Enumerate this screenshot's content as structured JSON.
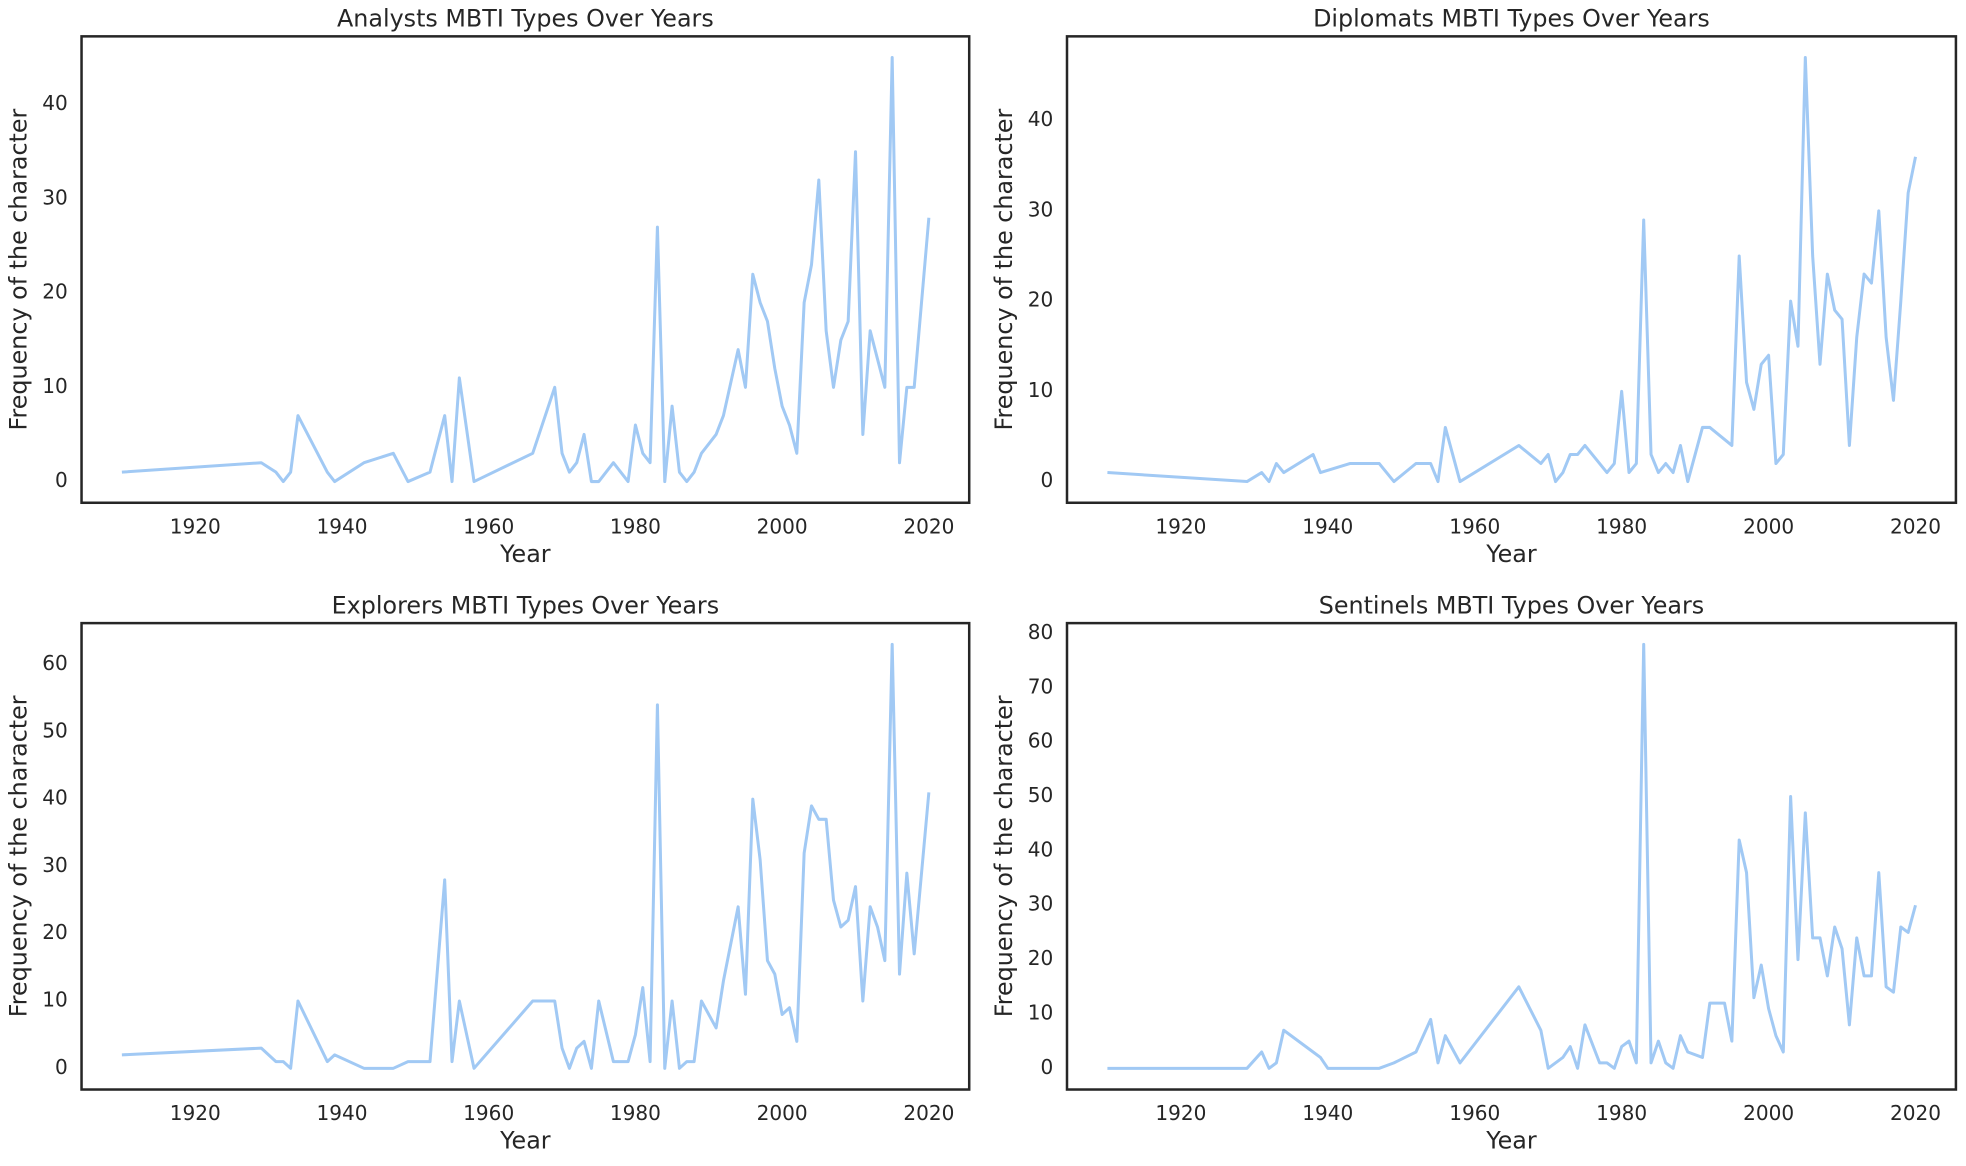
{
  "chart_data": [
    {
      "type": "line",
      "title": "Analysts MBTI Types Over Years",
      "x_label": "Year",
      "y_label": "Frequency of the character",
      "color": "#a1c9f4",
      "x": [
        1910,
        1929,
        1931,
        1932,
        1933,
        1934,
        1938,
        1939,
        1943,
        1947,
        1949,
        1952,
        1954,
        1955,
        1956,
        1958,
        1966,
        1969,
        1970,
        1971,
        1972,
        1973,
        1974,
        1975,
        1977,
        1979,
        1980,
        1981,
        1982,
        1983,
        1984,
        1985,
        1986,
        1987,
        1988,
        1989,
        1991,
        1992,
        1994,
        1995,
        1996,
        1997,
        1998,
        1999,
        2000,
        2001,
        2002,
        2003,
        2004,
        2005,
        2006,
        2007,
        2008,
        2009,
        2010,
        2011,
        2012,
        2014,
        2015,
        2016,
        2017,
        2018,
        2019,
        2020
      ],
      "values": [
        1,
        2,
        1,
        0,
        1,
        7,
        1,
        0,
        2,
        3,
        0,
        1,
        7,
        0,
        11,
        0,
        3,
        10,
        3,
        1,
        2,
        5,
        0,
        0,
        2,
        0,
        6,
        3,
        2,
        27,
        0,
        8,
        1,
        0,
        1,
        3,
        5,
        7,
        14,
        10,
        22,
        19,
        17,
        12,
        8,
        6,
        3,
        19,
        23,
        32,
        16,
        10,
        15,
        17,
        35,
        5,
        16,
        10,
        45,
        2,
        10,
        10,
        19,
        28
      ],
      "xlim": [
        1904.5,
        2025.5
      ],
      "xticks": [
        1920,
        1940,
        1960,
        1980,
        2000,
        2020
      ],
      "ylim": [
        -2.25,
        47.25
      ],
      "yticks": [
        0,
        10,
        20,
        30,
        40
      ]
    },
    {
      "type": "line",
      "title": "Diplomats MBTI Types Over Years",
      "x_label": "Year",
      "y_label": "Frequency of the character",
      "color": "#a1c9f4",
      "x": [
        1910,
        1929,
        1931,
        1932,
        1933,
        1934,
        1938,
        1939,
        1943,
        1947,
        1949,
        1952,
        1954,
        1955,
        1956,
        1958,
        1966,
        1969,
        1970,
        1971,
        1972,
        1973,
        1974,
        1975,
        1978,
        1979,
        1980,
        1981,
        1982,
        1983,
        1984,
        1985,
        1986,
        1987,
        1988,
        1989,
        1991,
        1992,
        1995,
        1996,
        1997,
        1998,
        1999,
        2000,
        2001,
        2002,
        2003,
        2004,
        2005,
        2006,
        2007,
        2008,
        2009,
        2010,
        2011,
        2012,
        2013,
        2014,
        2015,
        2016,
        2017,
        2018,
        2019,
        2020
      ],
      "values": [
        1,
        0,
        1,
        0,
        2,
        1,
        3,
        1,
        2,
        2,
        0,
        2,
        2,
        0,
        6,
        0,
        4,
        2,
        3,
        0,
        1,
        3,
        3,
        4,
        1,
        2,
        10,
        1,
        2,
        29,
        3,
        1,
        2,
        1,
        4,
        0,
        6,
        6,
        4,
        25,
        11,
        8,
        13,
        14,
        2,
        3,
        20,
        15,
        47,
        25,
        13,
        23,
        19,
        18,
        4,
        16,
        23,
        22,
        30,
        16,
        9,
        20,
        32,
        36
      ],
      "xlim": [
        1904.5,
        2025.5
      ],
      "xticks": [
        1920,
        1940,
        1960,
        1980,
        2000,
        2020
      ],
      "ylim": [
        -2.35,
        49.35
      ],
      "yticks": [
        0,
        10,
        20,
        30,
        40
      ]
    },
    {
      "type": "line",
      "title": "Explorers MBTI Types Over Years",
      "x_label": "Year",
      "y_label": "Frequency of the character",
      "color": "#a1c9f4",
      "x": [
        1910,
        1929,
        1931,
        1932,
        1933,
        1934,
        1938,
        1939,
        1943,
        1947,
        1949,
        1952,
        1954,
        1955,
        1956,
        1958,
        1966,
        1969,
        1970,
        1971,
        1972,
        1973,
        1974,
        1975,
        1977,
        1979,
        1980,
        1981,
        1982,
        1983,
        1984,
        1985,
        1986,
        1987,
        1988,
        1989,
        1991,
        1992,
        1994,
        1995,
        1996,
        1997,
        1998,
        1999,
        2000,
        2001,
        2002,
        2003,
        2004,
        2005,
        2006,
        2007,
        2008,
        2009,
        2010,
        2011,
        2012,
        2013,
        2014,
        2015,
        2016,
        2017,
        2018,
        2019,
        2020
      ],
      "values": [
        2,
        3,
        1,
        1,
        0,
        10,
        1,
        2,
        0,
        0,
        1,
        1,
        28,
        1,
        10,
        0,
        10,
        10,
        3,
        0,
        3,
        4,
        0,
        10,
        1,
        1,
        5,
        12,
        1,
        54,
        0,
        10,
        0,
        1,
        1,
        10,
        6,
        13,
        24,
        11,
        40,
        31,
        16,
        14,
        8,
        9,
        4,
        32,
        39,
        37,
        37,
        25,
        21,
        22,
        27,
        10,
        24,
        21,
        16,
        63,
        14,
        29,
        17,
        29,
        41
      ],
      "xlim": [
        1904.5,
        2025.5
      ],
      "xticks": [
        1920,
        1940,
        1960,
        1980,
        2000,
        2020
      ],
      "ylim": [
        -3.15,
        66.15
      ],
      "yticks": [
        0,
        10,
        20,
        30,
        40,
        50,
        60
      ]
    },
    {
      "type": "line",
      "title": "Sentinels MBTI Types Over Years",
      "x_label": "Year",
      "y_label": "Frequency of the character",
      "color": "#a1c9f4",
      "x": [
        1910,
        1929,
        1931,
        1932,
        1933,
        1934,
        1938,
        1939,
        1940,
        1947,
        1949,
        1952,
        1954,
        1955,
        1956,
        1958,
        1966,
        1969,
        1970,
        1972,
        1973,
        1974,
        1975,
        1977,
        1978,
        1979,
        1980,
        1981,
        1982,
        1983,
        1984,
        1985,
        1986,
        1987,
        1988,
        1989,
        1991,
        1992,
        1994,
        1995,
        1996,
        1997,
        1998,
        1999,
        2000,
        2001,
        2002,
        2003,
        2004,
        2005,
        2006,
        2007,
        2008,
        2009,
        2010,
        2011,
        2012,
        2013,
        2014,
        2015,
        2016,
        2017,
        2018,
        2019,
        2020
      ],
      "values": [
        0,
        0,
        3,
        0,
        1,
        7,
        3,
        2,
        0,
        0,
        1,
        3,
        9,
        1,
        6,
        1,
        15,
        7,
        0,
        2,
        4,
        0,
        8,
        1,
        1,
        0,
        4,
        5,
        1,
        78,
        1,
        5,
        1,
        0,
        6,
        3,
        2,
        12,
        12,
        5,
        42,
        36,
        13,
        19,
        11,
        6,
        3,
        50,
        20,
        47,
        24,
        24,
        17,
        26,
        22,
        8,
        24,
        17,
        17,
        36,
        15,
        14,
        26,
        25,
        30
      ],
      "xlim": [
        1904.5,
        2025.5
      ],
      "xticks": [
        1920,
        1940,
        1960,
        1980,
        2000,
        2020
      ],
      "ylim": [
        -3.9,
        81.9
      ],
      "yticks": [
        0,
        10,
        20,
        30,
        40,
        50,
        60,
        70,
        80
      ]
    }
  ]
}
